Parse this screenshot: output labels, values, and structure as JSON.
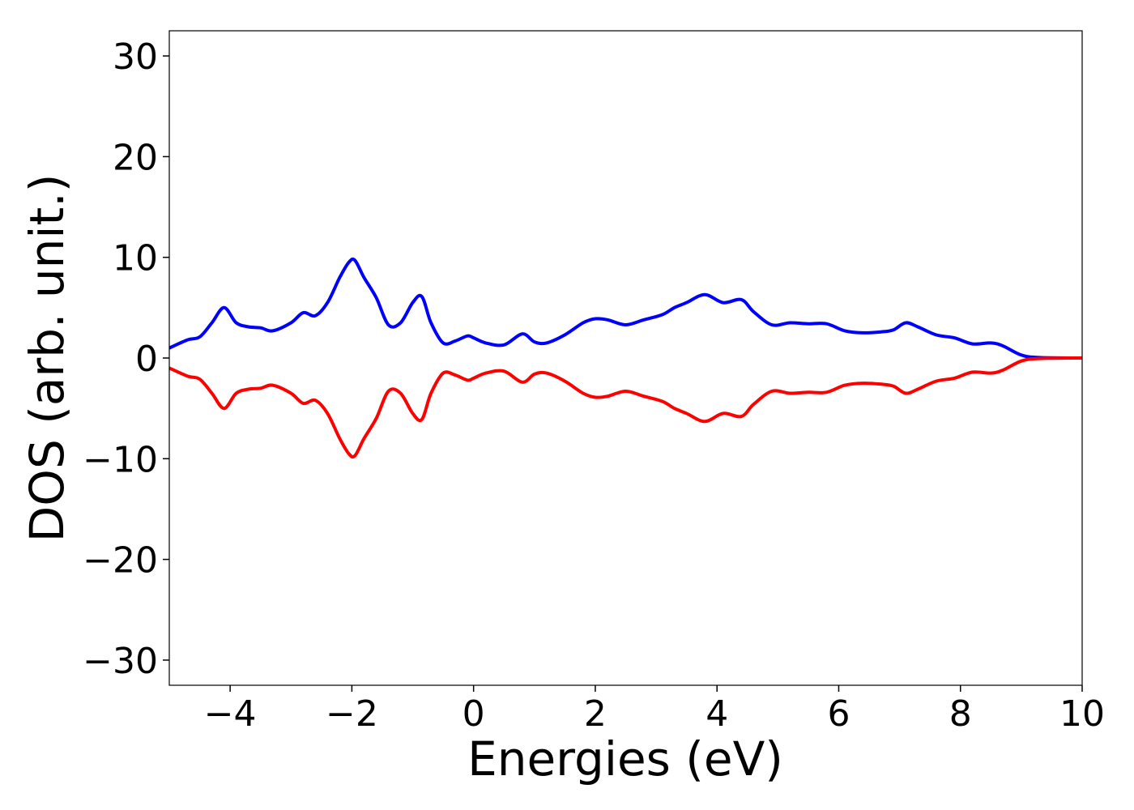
{
  "chart_data": {
    "type": "line",
    "xlabel": "Energies (eV)",
    "ylabel": "DOS (arb. unit.)",
    "xlim": [
      -5,
      10
    ],
    "ylim": [
      -32.5,
      32.5
    ],
    "xticks": [
      -4,
      -2,
      0,
      2,
      4,
      6,
      8,
      10
    ],
    "yticks": [
      -30,
      -20,
      -10,
      0,
      10,
      20,
      30
    ],
    "xtick_labels": [
      "−4",
      "−2",
      "0",
      "2",
      "4",
      "6",
      "8",
      "10"
    ],
    "ytick_labels": [
      "−30",
      "−20",
      "−10",
      "0",
      "10",
      "20",
      "30"
    ],
    "grid": false,
    "series": [
      {
        "color": "#0000ff",
        "x": [
          -5.0,
          -4.7,
          -4.5,
          -4.3,
          -4.1,
          -3.9,
          -3.7,
          -3.5,
          -3.3,
          -3.0,
          -2.8,
          -2.6,
          -2.4,
          -2.2,
          -2.05,
          -1.95,
          -1.8,
          -1.6,
          -1.4,
          -1.2,
          -1.0,
          -0.85,
          -0.7,
          -0.5,
          -0.3,
          -0.1,
          0.0,
          0.2,
          0.5,
          0.8,
          1.0,
          1.2,
          1.5,
          1.8,
          2.0,
          2.2,
          2.5,
          2.8,
          3.1,
          3.3,
          3.5,
          3.8,
          4.1,
          4.4,
          4.6,
          4.9,
          5.2,
          5.5,
          5.8,
          6.1,
          6.4,
          6.7,
          6.9,
          7.1,
          7.3,
          7.6,
          7.9,
          8.2,
          8.5,
          8.7,
          9.0,
          9.3,
          10.0
        ],
        "y": [
          1.0,
          1.8,
          2.1,
          3.5,
          5.0,
          3.5,
          3.1,
          3.0,
          2.7,
          3.5,
          4.5,
          4.2,
          5.5,
          8.0,
          9.5,
          9.7,
          8.0,
          6.0,
          3.3,
          3.5,
          5.5,
          6.1,
          3.5,
          1.5,
          1.7,
          2.2,
          2.0,
          1.5,
          1.3,
          2.4,
          1.6,
          1.5,
          2.3,
          3.5,
          3.9,
          3.8,
          3.3,
          3.8,
          4.3,
          5.0,
          5.5,
          6.3,
          5.5,
          5.8,
          4.6,
          3.3,
          3.5,
          3.4,
          3.4,
          2.7,
          2.5,
          2.6,
          2.8,
          3.5,
          3.1,
          2.3,
          2.0,
          1.4,
          1.5,
          1.2,
          0.3,
          0.05,
          0.0
        ]
      },
      {
        "color": "#ff0000",
        "x": [
          -5.0,
          -4.7,
          -4.5,
          -4.3,
          -4.1,
          -3.9,
          -3.7,
          -3.5,
          -3.3,
          -3.0,
          -2.8,
          -2.6,
          -2.4,
          -2.2,
          -2.05,
          -1.95,
          -1.8,
          -1.6,
          -1.4,
          -1.2,
          -1.0,
          -0.85,
          -0.7,
          -0.5,
          -0.3,
          -0.1,
          0.0,
          0.2,
          0.5,
          0.8,
          1.0,
          1.2,
          1.5,
          1.8,
          2.0,
          2.2,
          2.5,
          2.8,
          3.1,
          3.3,
          3.5,
          3.8,
          4.1,
          4.4,
          4.6,
          4.9,
          5.2,
          5.5,
          5.8,
          6.1,
          6.4,
          6.7,
          6.9,
          7.1,
          7.3,
          7.6,
          7.9,
          8.2,
          8.5,
          8.7,
          9.0,
          9.3,
          10.0
        ],
        "y": [
          -1.0,
          -1.8,
          -2.1,
          -3.5,
          -5.0,
          -3.5,
          -3.1,
          -3.0,
          -2.7,
          -3.5,
          -4.5,
          -4.2,
          -5.5,
          -8.0,
          -9.5,
          -9.7,
          -8.0,
          -6.0,
          -3.3,
          -3.5,
          -5.5,
          -6.1,
          -3.5,
          -1.5,
          -1.7,
          -2.2,
          -2.0,
          -1.5,
          -1.3,
          -2.4,
          -1.6,
          -1.5,
          -2.3,
          -3.5,
          -3.9,
          -3.8,
          -3.3,
          -3.8,
          -4.3,
          -5.0,
          -5.5,
          -6.3,
          -5.5,
          -5.8,
          -4.6,
          -3.3,
          -3.5,
          -3.4,
          -3.4,
          -2.7,
          -2.5,
          -2.6,
          -2.8,
          -3.5,
          -3.1,
          -2.3,
          -2.0,
          -1.4,
          -1.5,
          -1.2,
          -0.3,
          -0.05,
          0.0
        ]
      }
    ]
  }
}
